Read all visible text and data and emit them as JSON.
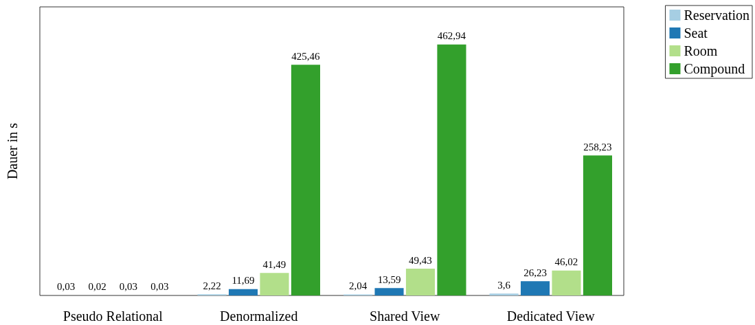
{
  "chart_data": {
    "type": "bar",
    "ylabel": "Dauer in s",
    "categories": [
      "Pseudo Relational",
      "Denormalized",
      "Shared View",
      "Dedicated View"
    ],
    "series": [
      {
        "name": "Reservation",
        "color": "#a6cee3",
        "values": [
          0.03,
          2.22,
          2.04,
          3.6
        ],
        "value_labels": [
          "0,03",
          "2,22",
          "2,04",
          "3,6"
        ]
      },
      {
        "name": "Seat",
        "color": "#1f78b4",
        "values": [
          0.02,
          11.69,
          13.59,
          26.23
        ],
        "value_labels": [
          "0,02",
          "11,69",
          "13,59",
          "26,23"
        ]
      },
      {
        "name": "Room",
        "color": "#b2df8a",
        "values": [
          0.03,
          41.49,
          49.43,
          46.02
        ],
        "value_labels": [
          "0,03",
          "41,49",
          "49,43",
          "46,02"
        ]
      },
      {
        "name": "Compound",
        "color": "#33a02c",
        "values": [
          0.03,
          425.46,
          462.94,
          258.23
        ],
        "value_labels": [
          "0,03",
          "425,46",
          "462,94",
          "258,23"
        ]
      }
    ],
    "legend": "top right",
    "grid": false
  }
}
